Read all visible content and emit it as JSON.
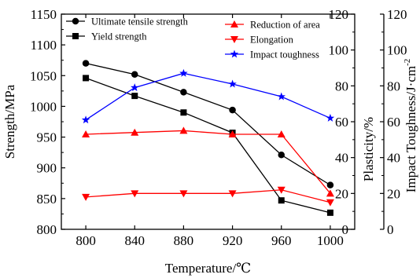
{
  "chart_data": {
    "type": "line",
    "x": [
      800,
      840,
      880,
      920,
      960,
      1000
    ],
    "xlabel": "Temperature/℃",
    "xlim": [
      780,
      1020
    ],
    "xticks": [
      "800",
      "840",
      "880",
      "920",
      "960",
      "1000"
    ],
    "axes": {
      "left": {
        "label": "Strength/MPa",
        "ylim": [
          800,
          1150
        ],
        "ticks": [
          "800",
          "850",
          "900",
          "950",
          "1000",
          "1050",
          "1100",
          "1150"
        ]
      },
      "middle": {
        "label": "Plasticity/%",
        "ylim": [
          0,
          120
        ],
        "ticks": [
          "0",
          "20",
          "40",
          "60",
          "80",
          "100",
          "120"
        ]
      },
      "right": {
        "label": "Impact Toughness/J·cm",
        "label_superscript": "-2",
        "ylim": [
          0,
          120
        ],
        "ticks": [
          "0",
          "20",
          "40",
          "60",
          "80",
          "100",
          "120"
        ]
      }
    },
    "series": [
      {
        "name": "Ultimate tensile strength",
        "axis": "left",
        "color": "#000000",
        "marker": "circle",
        "values": [
          1070,
          1052,
          1023,
          994,
          921,
          872
        ]
      },
      {
        "name": "Yield strength",
        "axis": "left",
        "color": "#000000",
        "marker": "square",
        "values": [
          1046,
          1017,
          990,
          957,
          847,
          827
        ]
      },
      {
        "name": "Reduction of area",
        "axis": "middle",
        "color": "#ff0000",
        "marker": "triangle-up",
        "values": [
          53,
          54,
          55,
          53,
          53,
          20
        ]
      },
      {
        "name": "Elongation",
        "axis": "middle",
        "color": "#ff0000",
        "marker": "triangle-down",
        "values": [
          18,
          20,
          20,
          20,
          22,
          15
        ]
      },
      {
        "name": "Impact toughness",
        "axis": "right",
        "color": "#0000ff",
        "marker": "star",
        "values": [
          61,
          79,
          87,
          81,
          74,
          62
        ]
      }
    ],
    "legend": [
      {
        "position": "top-left",
        "items": [
          "Ultimate tensile strength",
          "Yield strength"
        ]
      },
      {
        "position": "top-right",
        "items": [
          "Reduction of area",
          "Elongation",
          "Impact toughness"
        ]
      }
    ],
    "grid": false
  }
}
